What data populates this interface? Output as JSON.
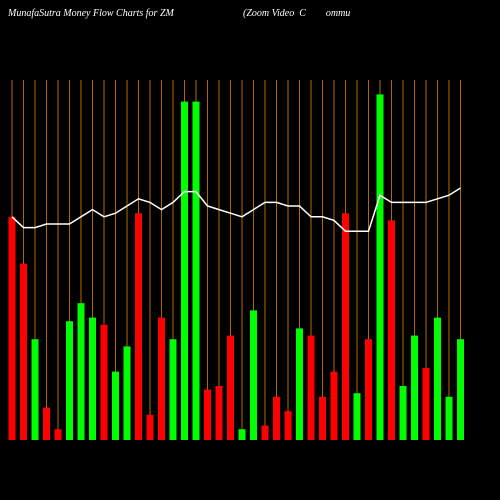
{
  "chart_data": {
    "type": "bar",
    "title": "MunafaSutra  Money Flow  Charts for ZM",
    "subtitle": "(Zoom Video  C        ommu",
    "ylim": [
      0,
      100
    ],
    "grid_color": "#b26a00",
    "line_color": "#ffffff",
    "values": [
      62,
      49,
      28,
      9,
      3,
      33,
      38,
      34,
      32,
      19,
      26,
      63,
      7,
      34,
      28,
      94,
      94,
      14,
      15,
      29,
      3,
      36,
      4,
      12,
      8,
      31,
      29,
      12,
      19,
      63,
      13,
      28,
      96,
      61,
      15,
      29,
      20,
      34,
      12,
      28
    ],
    "colors": [
      "#ff0000",
      "#ff0000",
      "#00ff00",
      "#ff0000",
      "#ff0000",
      "#00ff00",
      "#00ff00",
      "#00ff00",
      "#ff0000",
      "#00ff00",
      "#00ff00",
      "#ff0000",
      "#ff0000",
      "#ff0000",
      "#00ff00",
      "#00ff00",
      "#00ff00",
      "#ff0000",
      "#ff0000",
      "#ff0000",
      "#00ff00",
      "#00ff00",
      "#ff0000",
      "#ff0000",
      "#ff0000",
      "#00ff00",
      "#ff0000",
      "#ff0000",
      "#ff0000",
      "#ff0000",
      "#00ff00",
      "#ff0000",
      "#00ff00",
      "#ff0000",
      "#00ff00",
      "#00ff00",
      "#ff0000",
      "#00ff00",
      "#00ff00",
      "#00ff00"
    ],
    "line_values": [
      62,
      59,
      59,
      60,
      60,
      60,
      62,
      64,
      62,
      63,
      65,
      67,
      66,
      64,
      66,
      69,
      69,
      65,
      64,
      63,
      62,
      64,
      66,
      66,
      65,
      65,
      62,
      62,
      61,
      58,
      58,
      58,
      68,
      66,
      66,
      66,
      66,
      67,
      68,
      70
    ]
  }
}
